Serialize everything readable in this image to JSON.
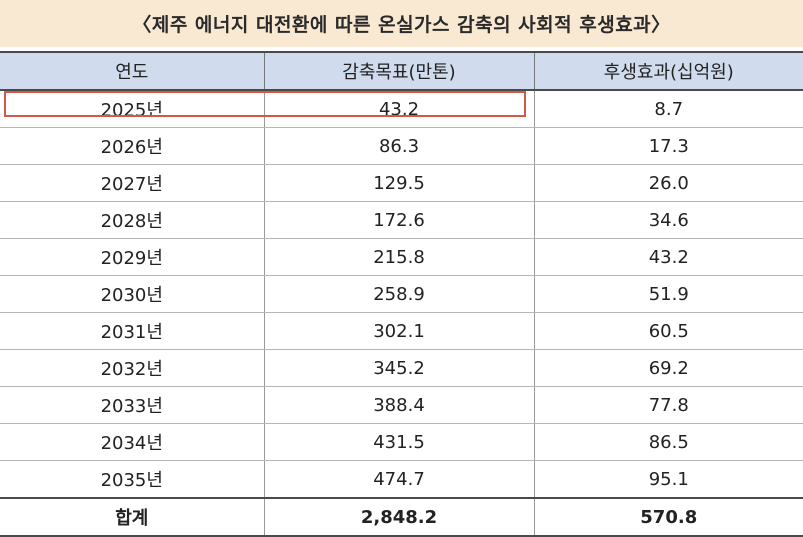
{
  "title": "〈제주 에너지 대전환에 따른 온실가스 감축의 사회적 후생효과〉",
  "chart_data": {
    "type": "table",
    "title": "〈제주 에너지 대전환에 따른 온실가스 감축의 사회적 후생효과〉",
    "columns": [
      "연도",
      "감축목표(만톤)",
      "후생효과(십억원)"
    ],
    "rows": [
      [
        "2025년",
        "43.2",
        "8.7"
      ],
      [
        "2026년",
        "86.3",
        "17.3"
      ],
      [
        "2027년",
        "129.5",
        "26.0"
      ],
      [
        "2028년",
        "172.6",
        "34.6"
      ],
      [
        "2029년",
        "215.8",
        "43.2"
      ],
      [
        "2030년",
        "258.9",
        "51.9"
      ],
      [
        "2031년",
        "302.1",
        "60.5"
      ],
      [
        "2032년",
        "345.2",
        "69.2"
      ],
      [
        "2033년",
        "388.4",
        "77.8"
      ],
      [
        "2034년",
        "431.5",
        "86.5"
      ],
      [
        "2035년",
        "474.7",
        "95.1"
      ]
    ],
    "total": [
      "합계",
      "2,848.2",
      "570.8"
    ],
    "highlight_color": "#d4574a",
    "header_color": "#d0dcee",
    "title_bg_color": "#f9e8d2"
  }
}
